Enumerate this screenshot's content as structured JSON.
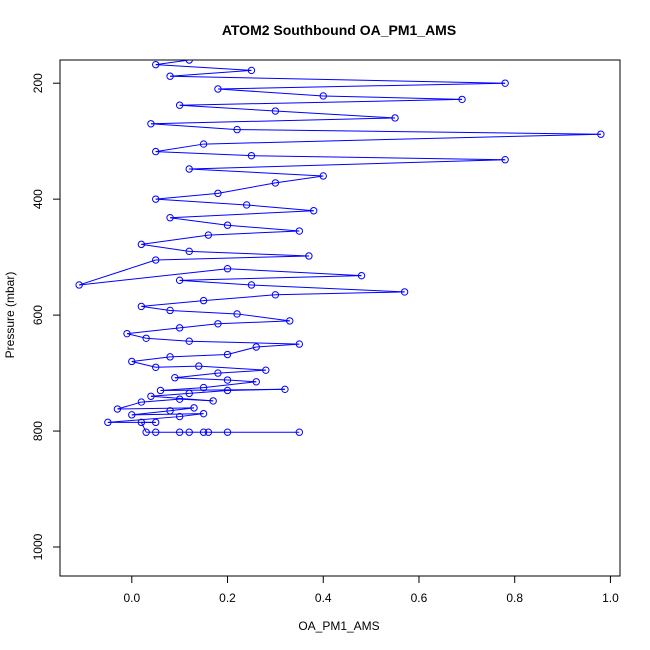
{
  "chart_data": {
    "type": "scatter",
    "title": "ATOM2 Southbound OA_PM1_AMS",
    "xlabel": "OA_PM1_AMS",
    "ylabel": "Pressure (mbar)",
    "xlim": [
      -0.15,
      1.02
    ],
    "ylim": [
      1050,
      160
    ],
    "y_reversed": true,
    "x_ticks": [
      0.0,
      0.2,
      0.4,
      0.6,
      0.8,
      1.0
    ],
    "x_tick_labels": [
      "0.0",
      "0.2",
      "0.4",
      "0.6",
      "0.8",
      "1.0"
    ],
    "y_ticks": [
      200,
      400,
      600,
      800,
      1000
    ],
    "y_tick_labels": [
      "200",
      "400",
      "600",
      "800",
      "1000"
    ],
    "grid": false,
    "style": "points connected by lines (open circle markers)",
    "color": "#0000ff",
    "series": [
      {
        "values": [
          [
            0.35,
            802
          ],
          [
            0.2,
            802
          ],
          [
            0.16,
            802
          ],
          [
            0.15,
            802
          ],
          [
            0.12,
            802
          ],
          [
            0.1,
            802
          ],
          [
            0.05,
            802
          ],
          [
            0.03,
            802
          ],
          [
            0.02,
            785
          ],
          [
            0.05,
            785
          ],
          [
            -0.05,
            785
          ],
          [
            0.1,
            775
          ],
          [
            0.15,
            770
          ],
          [
            0.0,
            772
          ],
          [
            0.08,
            765
          ],
          [
            0.13,
            760
          ],
          [
            -0.03,
            762
          ],
          [
            0.02,
            750
          ],
          [
            0.1,
            745
          ],
          [
            0.17,
            748
          ],
          [
            0.04,
            740
          ],
          [
            0.12,
            735
          ],
          [
            0.2,
            730
          ],
          [
            0.32,
            728
          ],
          [
            0.06,
            730
          ],
          [
            0.15,
            725
          ],
          [
            0.26,
            715
          ],
          [
            0.2,
            712
          ],
          [
            0.09,
            708
          ],
          [
            0.18,
            700
          ],
          [
            0.28,
            695
          ],
          [
            0.14,
            688
          ],
          [
            0.05,
            690
          ],
          [
            0.0,
            680
          ],
          [
            0.08,
            672
          ],
          [
            0.2,
            668
          ],
          [
            0.26,
            655
          ],
          [
            0.35,
            650
          ],
          [
            0.12,
            645
          ],
          [
            0.03,
            640
          ],
          [
            -0.01,
            632
          ],
          [
            0.1,
            622
          ],
          [
            0.18,
            615
          ],
          [
            0.33,
            610
          ],
          [
            0.22,
            598
          ],
          [
            0.08,
            592
          ],
          [
            0.02,
            585
          ],
          [
            0.15,
            575
          ],
          [
            0.3,
            565
          ],
          [
            0.57,
            560
          ],
          [
            0.25,
            548
          ],
          [
            0.1,
            540
          ],
          [
            0.48,
            532
          ],
          [
            0.2,
            520
          ],
          [
            -0.11,
            548
          ],
          [
            0.05,
            505
          ],
          [
            0.37,
            498
          ],
          [
            0.12,
            490
          ],
          [
            0.02,
            478
          ],
          [
            0.16,
            462
          ],
          [
            0.35,
            455
          ],
          [
            0.2,
            445
          ],
          [
            0.08,
            432
          ],
          [
            0.38,
            420
          ],
          [
            0.24,
            410
          ],
          [
            0.05,
            400
          ],
          [
            0.18,
            390
          ],
          [
            0.3,
            372
          ],
          [
            0.4,
            360
          ],
          [
            0.12,
            348
          ],
          [
            0.78,
            332
          ],
          [
            0.25,
            325
          ],
          [
            0.05,
            318
          ],
          [
            0.15,
            305
          ],
          [
            0.98,
            288
          ],
          [
            0.22,
            280
          ],
          [
            0.04,
            270
          ],
          [
            0.55,
            260
          ],
          [
            0.3,
            248
          ],
          [
            0.1,
            238
          ],
          [
            0.69,
            228
          ],
          [
            0.4,
            222
          ],
          [
            0.18,
            210
          ],
          [
            0.78,
            200
          ],
          [
            0.08,
            188
          ],
          [
            0.25,
            178
          ],
          [
            0.05,
            168
          ],
          [
            0.12,
            160
          ]
        ]
      }
    ]
  }
}
